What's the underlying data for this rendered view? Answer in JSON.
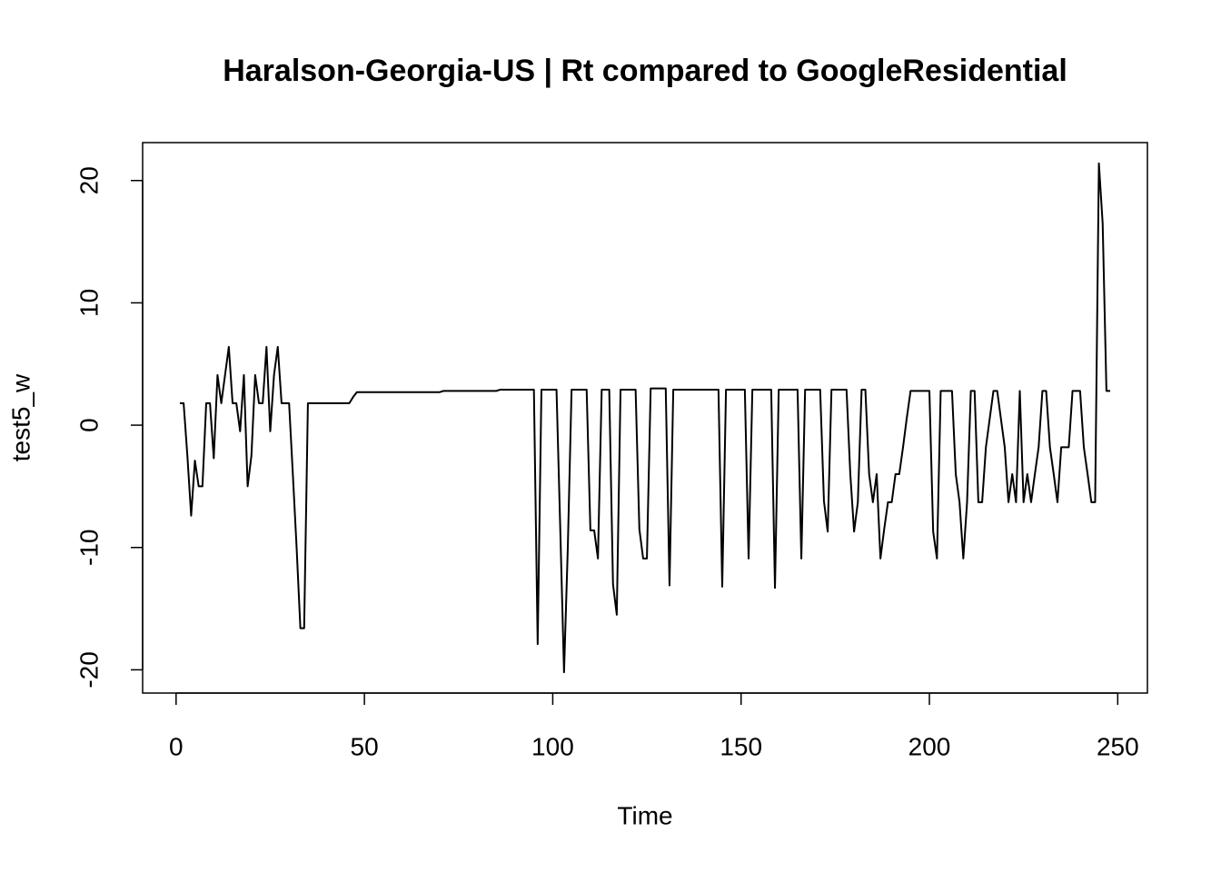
{
  "chart_data": {
    "type": "line",
    "title": "Haralson-Georgia-US | Rt compared to GoogleResidential",
    "x_label": "Time",
    "y_label": "test5_w",
    "xlim": [
      -8.88,
      257.88
    ],
    "ylim": [
      -21.9,
      23.1
    ],
    "xticks": [
      0,
      50,
      100,
      150,
      200,
      250
    ],
    "yticks": [
      -20,
      -10,
      0,
      10,
      20
    ],
    "grid": false,
    "series": [
      {
        "color": "#000000",
        "x": [
          1,
          2,
          3,
          4,
          5,
          6,
          7,
          8,
          9,
          10,
          11,
          12,
          13,
          14,
          15,
          16,
          17,
          18,
          19,
          20,
          21,
          22,
          23,
          24,
          25,
          26,
          27,
          28,
          29,
          30,
          31,
          32,
          33,
          34,
          35,
          36,
          37,
          38,
          39,
          40,
          41,
          42,
          43,
          44,
          45,
          46,
          47,
          48,
          49,
          50,
          51,
          52,
          53,
          54,
          55,
          56,
          57,
          58,
          59,
          60,
          61,
          62,
          63,
          64,
          65,
          66,
          67,
          68,
          69,
          70,
          71,
          72,
          73,
          74,
          75,
          76,
          77,
          78,
          79,
          80,
          81,
          82,
          83,
          84,
          85,
          86,
          87,
          88,
          89,
          90,
          91,
          92,
          93,
          94,
          95,
          96,
          97,
          98,
          99,
          100,
          101,
          102,
          103,
          104,
          105,
          106,
          107,
          108,
          109,
          110,
          111,
          112,
          113,
          114,
          115,
          116,
          117,
          118,
          119,
          120,
          121,
          122,
          123,
          124,
          125,
          126,
          127,
          128,
          129,
          130,
          131,
          132,
          133,
          134,
          135,
          136,
          137,
          138,
          139,
          140,
          141,
          142,
          143,
          144,
          145,
          146,
          147,
          148,
          149,
          150,
          151,
          152,
          153,
          154,
          155,
          156,
          157,
          158,
          159,
          160,
          161,
          162,
          163,
          164,
          165,
          166,
          167,
          168,
          169,
          170,
          171,
          172,
          173,
          174,
          175,
          176,
          177,
          178,
          179,
          180,
          181,
          182,
          183,
          184,
          185,
          186,
          187,
          188,
          189,
          190,
          191,
          192,
          193,
          194,
          195,
          196,
          197,
          198,
          199,
          200,
          201,
          202,
          203,
          204,
          205,
          206,
          207,
          208,
          209,
          210,
          211,
          212,
          213,
          214,
          215,
          216,
          217,
          218,
          219,
          220,
          221,
          222,
          223,
          224,
          225,
          226,
          227,
          228,
          229,
          230,
          231,
          232,
          233,
          234,
          235,
          236,
          237,
          238,
          239,
          240,
          241,
          242,
          243,
          244,
          245,
          246,
          247,
          248
        ],
        "values": [
          1.8,
          1.8,
          -2.5,
          -7.4,
          -2.9,
          -5,
          -5,
          1.8,
          1.8,
          -2.7,
          4.1,
          1.8,
          4.1,
          6.4,
          1.8,
          1.8,
          -0.5,
          4.1,
          -5,
          -2.5,
          4.1,
          1.8,
          1.8,
          6.4,
          -0.5,
          4.1,
          6.4,
          1.8,
          1.8,
          1.8,
          -4,
          -10,
          -16.6,
          -16.6,
          1.8,
          1.8,
          1.8,
          1.8,
          1.8,
          1.8,
          1.8,
          1.8,
          1.8,
          1.8,
          1.8,
          1.8,
          2.3,
          2.7,
          2.7,
          2.7,
          2.7,
          2.7,
          2.7,
          2.7,
          2.7,
          2.7,
          2.7,
          2.7,
          2.7,
          2.7,
          2.7,
          2.7,
          2.7,
          2.7,
          2.7,
          2.7,
          2.7,
          2.7,
          2.7,
          2.7,
          2.8,
          2.8,
          2.8,
          2.8,
          2.8,
          2.8,
          2.8,
          2.8,
          2.8,
          2.8,
          2.8,
          2.8,
          2.8,
          2.8,
          2.8,
          2.9,
          2.9,
          2.9,
          2.9,
          2.9,
          2.9,
          2.9,
          2.9,
          2.9,
          2.9,
          -17.9,
          2.9,
          2.9,
          2.9,
          2.9,
          2.9,
          -8.5,
          -20.2,
          -10,
          2.9,
          2.9,
          2.9,
          2.9,
          2.9,
          -8.6,
          -8.6,
          -10.9,
          2.9,
          2.9,
          2.9,
          -13,
          -15.5,
          2.9,
          2.9,
          2.9,
          2.9,
          2.9,
          -8.5,
          -10.9,
          -10.9,
          3,
          3,
          3,
          3,
          3,
          -13.1,
          2.9,
          2.9,
          2.9,
          2.9,
          2.9,
          2.9,
          2.9,
          2.9,
          2.9,
          2.9,
          2.9,
          2.9,
          2.9,
          -13.2,
          2.9,
          2.9,
          2.9,
          2.9,
          2.9,
          2.9,
          -10.9,
          2.9,
          2.9,
          2.9,
          2.9,
          2.9,
          2.9,
          -13.3,
          2.9,
          2.9,
          2.9,
          2.9,
          2.9,
          2.9,
          -10.9,
          2.9,
          2.9,
          2.9,
          2.9,
          2.9,
          -6.2,
          -8.7,
          2.9,
          2.9,
          2.9,
          2.9,
          2.9,
          -4,
          -8.7,
          -6.3,
          2.9,
          2.9,
          -4,
          -6.3,
          -4,
          -10.9,
          -8.5,
          -6.3,
          -6.3,
          -4,
          -4,
          -1.8,
          0.6,
          2.8,
          2.8,
          2.8,
          2.8,
          2.8,
          2.8,
          -8.7,
          -10.9,
          2.8,
          2.8,
          2.8,
          2.8,
          -4,
          -6.3,
          -10.9,
          -6.3,
          2.8,
          2.8,
          -6.3,
          -6.3,
          -1.8,
          0.5,
          2.8,
          2.8,
          0.5,
          -1.8,
          -6.3,
          -4,
          -6.3,
          2.8,
          -6.3,
          -4,
          -6.3,
          -4,
          -1.8,
          2.8,
          2.8,
          -1.8,
          -4,
          -6.3,
          -1.8,
          -1.8,
          -1.8,
          2.8,
          2.8,
          2.8,
          -1.8,
          -4,
          -6.3,
          -6.3,
          21.4,
          16.5,
          2.8,
          2.8
        ]
      }
    ]
  }
}
